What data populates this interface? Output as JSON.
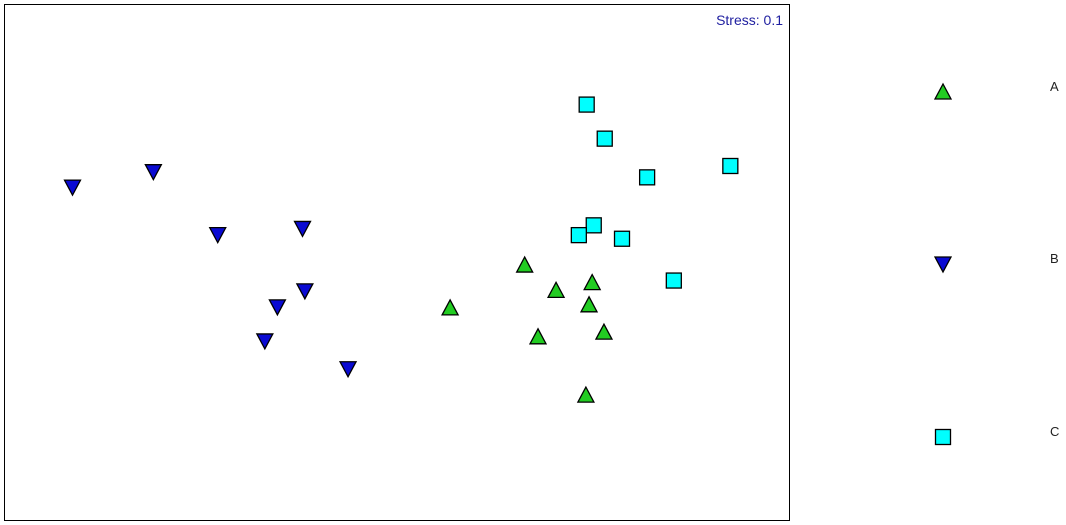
{
  "chart_data": {
    "type": "scatter",
    "annotation": "Stress: 0.1",
    "frame": true,
    "axes_visible": false,
    "xlim": [
      0,
      100
    ],
    "ylim": [
      0,
      100
    ],
    "legend_position": "right",
    "series": [
      {
        "name": "A",
        "marker": "triangle-up",
        "color": "#22cc22",
        "points": [
          {
            "x": 56.7,
            "y": 41.3
          },
          {
            "x": 66.2,
            "y": 49.6
          },
          {
            "x": 70.2,
            "y": 44.7
          },
          {
            "x": 74.8,
            "y": 46.2
          },
          {
            "x": 74.4,
            "y": 41.9
          },
          {
            "x": 76.3,
            "y": 36.6
          },
          {
            "x": 67.9,
            "y": 35.7
          },
          {
            "x": 74.0,
            "y": 24.4
          }
        ]
      },
      {
        "name": "B",
        "marker": "triangle-down",
        "color": "#0a0ad2",
        "points": [
          {
            "x": 8.6,
            "y": 64.7
          },
          {
            "x": 18.9,
            "y": 67.7
          },
          {
            "x": 27.1,
            "y": 55.5
          },
          {
            "x": 37.9,
            "y": 56.7
          },
          {
            "x": 38.2,
            "y": 44.6
          },
          {
            "x": 34.7,
            "y": 41.5
          },
          {
            "x": 33.1,
            "y": 34.9
          },
          {
            "x": 43.7,
            "y": 29.5
          }
        ]
      },
      {
        "name": "C",
        "marker": "square",
        "color": "#00ffff",
        "points": [
          {
            "x": 74.1,
            "y": 80.7
          },
          {
            "x": 76.4,
            "y": 74.1
          },
          {
            "x": 81.8,
            "y": 66.6
          },
          {
            "x": 92.4,
            "y": 68.8
          },
          {
            "x": 75.0,
            "y": 57.3
          },
          {
            "x": 73.1,
            "y": 55.4
          },
          {
            "x": 78.6,
            "y": 54.7
          },
          {
            "x": 85.2,
            "y": 46.6
          }
        ]
      }
    ]
  }
}
